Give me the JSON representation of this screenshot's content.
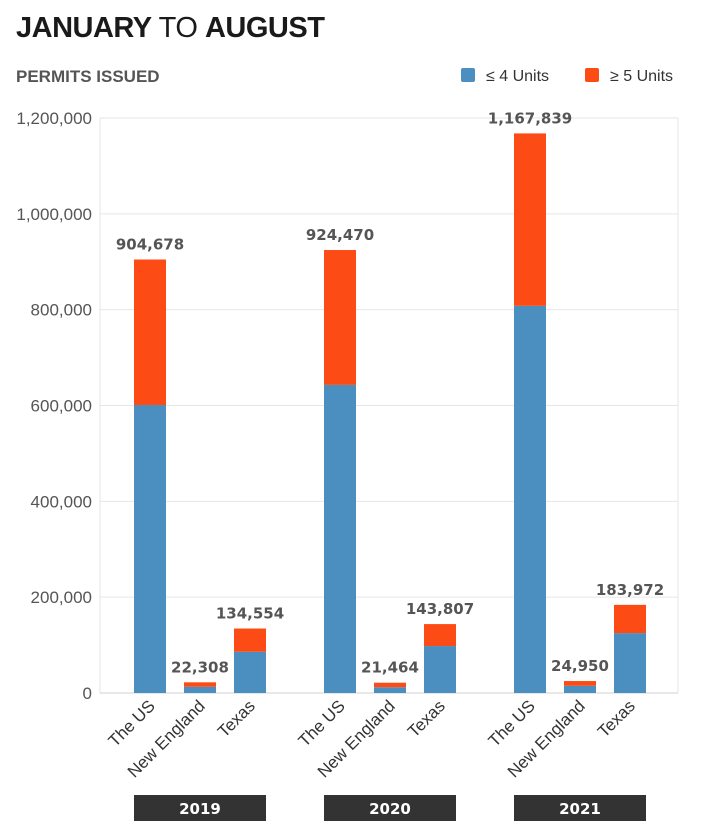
{
  "header": {
    "title_part1": "JANUARY",
    "title_part2": "TO",
    "title_part3": "AUGUST",
    "subtitle": "PERMITS ISSUED"
  },
  "colors": {
    "small_units": "#4a8fc0",
    "large_units": "#fc4b14",
    "grid": "#e6e6e6",
    "year_box": "#333333"
  },
  "chart_data": {
    "type": "bar",
    "stacked": true,
    "ylim": [
      0,
      1200000
    ],
    "yticks": [
      0,
      200000,
      400000,
      600000,
      800000,
      1000000,
      1200000
    ],
    "ytick_labels": [
      "0",
      "200,000",
      "400,000",
      "600,000",
      "800,000",
      "1,000,000",
      "1,200,000"
    ],
    "grid": true,
    "legend_position": "top-right",
    "legend": [
      "≤ 4 Units",
      "≥ 5 Units"
    ],
    "groups": [
      {
        "year": "2019",
        "bars": [
          {
            "category": "The US",
            "small": 601000,
            "large": 303678,
            "total_label": "904,678"
          },
          {
            "category": "New England",
            "small": 13000,
            "large": 9308,
            "total_label": "22,308"
          },
          {
            "category": "Texas",
            "small": 86000,
            "large": 48554,
            "total_label": "134,554"
          }
        ]
      },
      {
        "year": "2020",
        "bars": [
          {
            "category": "The US",
            "small": 643000,
            "large": 281470,
            "total_label": "924,470"
          },
          {
            "category": "New England",
            "small": 12000,
            "large": 9464,
            "total_label": "21,464"
          },
          {
            "category": "Texas",
            "small": 98000,
            "large": 45807,
            "total_label": "143,807"
          }
        ]
      },
      {
        "year": "2021",
        "bars": [
          {
            "category": "The US",
            "small": 808000,
            "large": 359839,
            "total_label": "1,167,839"
          },
          {
            "category": "New England",
            "small": 15000,
            "large": 9950,
            "total_label": "24,950"
          },
          {
            "category": "Texas",
            "small": 125000,
            "large": 58972,
            "total_label": "183,972"
          }
        ]
      }
    ]
  }
}
